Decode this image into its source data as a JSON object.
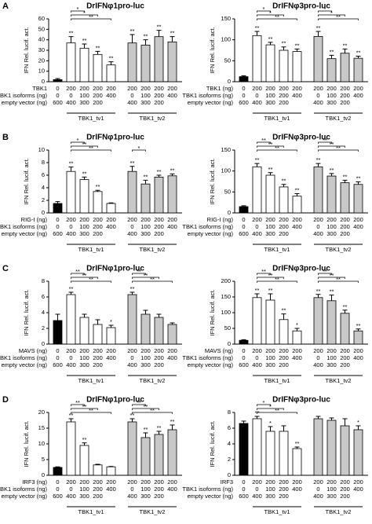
{
  "bar_colors": [
    "#000000",
    "#ffffff",
    "#ffffff",
    "#ffffff",
    "#ffffff",
    "#c8c8c8",
    "#c8c8c8",
    "#c8c8c8",
    "#c8c8c8"
  ],
  "isoform_doses": [
    0,
    0,
    100,
    200,
    400,
    0,
    100,
    200,
    400
  ],
  "empty_doses": [
    600,
    400,
    300,
    200,
    null,
    400,
    300,
    200,
    null
  ],
  "inducer_doses": [
    0,
    200,
    200,
    200,
    200,
    200,
    200,
    200,
    200
  ],
  "row_isoforms": "TBK1 isoforms (ng)",
  "row_empty": "empty vector (ng)",
  "group_left": "TBK1_tv1",
  "group_right": "TBK1_tv2",
  "chart_data": [
    {
      "type": "bar",
      "letter": "A",
      "title": "DrIFNφ1pro-luc",
      "ylabel": "IFN Rel. lucif. act.",
      "inducer": "TBK1",
      "ylim": [
        0,
        60
      ],
      "yticks": [
        0,
        10,
        20,
        30,
        40,
        50,
        60
      ],
      "values": [
        2,
        37,
        32,
        26,
        16,
        37,
        35,
        43,
        38
      ],
      "errors": [
        1,
        6,
        4,
        3,
        3,
        8,
        5,
        6,
        5
      ],
      "stars": [
        null,
        "**",
        "**",
        "**",
        "**",
        "**",
        "**",
        "**",
        "**"
      ],
      "brackets_left": [
        "*",
        "*",
        "**"
      ],
      "brackets_right": []
    },
    {
      "type": "bar",
      "letter": null,
      "title": "DrIFNφ3pro-luc",
      "ylabel": "IFN Rel. lucif. act.",
      "inducer": "TBK1 (ng)",
      "ylim": [
        0,
        150
      ],
      "yticks": [
        0,
        50,
        100,
        150
      ],
      "values": [
        12,
        110,
        88,
        75,
        72,
        108,
        55,
        68,
        56
      ],
      "errors": [
        2,
        10,
        6,
        8,
        6,
        12,
        8,
        10,
        5
      ],
      "stars": [
        null,
        "**",
        "**",
        "**",
        "**",
        "**",
        "**",
        "**",
        "**"
      ],
      "brackets_left": [
        "*",
        "*",
        "**"
      ],
      "brackets_right": [
        "*",
        "*",
        "**"
      ]
    },
    {
      "type": "bar",
      "letter": "B",
      "title": "DrIFNφ1pro-luc",
      "ylabel": "IFN Rel. lucif. act.",
      "inducer": "RIG-I (ng)",
      "ylim": [
        0,
        10
      ],
      "yticks": [
        0,
        2,
        4,
        6,
        8,
        10
      ],
      "values": [
        1.5,
        6.6,
        5.3,
        3.4,
        1.5,
        6.6,
        4.6,
        5.7,
        5.9
      ],
      "errors": [
        0.3,
        0.7,
        0.4,
        0.2,
        0.1,
        0.8,
        0.6,
        0.3,
        0.3
      ],
      "stars": [
        null,
        "**",
        "**",
        "**",
        null,
        "**",
        "**",
        "**",
        "**"
      ],
      "brackets_left": [
        "*",
        "**",
        "**"
      ],
      "brackets_right": [
        "*"
      ]
    },
    {
      "type": "bar",
      "letter": null,
      "title": "DrIFNφ3pro-luc",
      "ylabel": "IFN Rel. lucif. act.",
      "inducer": "RIG-I (ng)",
      "ylim": [
        0,
        150
      ],
      "yticks": [
        0,
        50,
        100,
        150
      ],
      "values": [
        15,
        110,
        90,
        62,
        40,
        110,
        88,
        72,
        68
      ],
      "errors": [
        2,
        8,
        6,
        6,
        6,
        8,
        6,
        6,
        6
      ],
      "stars": [
        null,
        "**",
        "**",
        "**",
        "**",
        "**",
        "**",
        "**",
        "**"
      ],
      "brackets_left": [
        "**",
        "**",
        "**"
      ],
      "brackets_right": [
        "**",
        "**",
        "**"
      ]
    },
    {
      "type": "bar",
      "letter": "C",
      "title": "DrIFNφ1pro-luc",
      "ylabel": "IFN Rel. lucif. act.",
      "inducer": "MAVS (ng)",
      "ylim": [
        0,
        8
      ],
      "yticks": [
        0,
        2,
        4,
        6,
        8
      ],
      "values": [
        3.0,
        6.3,
        3.4,
        2.5,
        2.1,
        6.3,
        3.8,
        3.4,
        2.5
      ],
      "errors": [
        0.8,
        0.3,
        0.4,
        0.6,
        0.3,
        0.3,
        0.5,
        0.4,
        0.2
      ],
      "stars": [
        null,
        "**",
        null,
        null,
        "*",
        "**",
        null,
        null,
        null
      ],
      "brackets_left": [
        "**",
        "**",
        "**"
      ],
      "brackets_right": [
        "**",
        "**",
        "**"
      ]
    },
    {
      "type": "bar",
      "letter": null,
      "title": "DrIFNφ3pro-luc",
      "ylabel": "IFN Rel. lucif. act.",
      "inducer": "MAVS (ng)",
      "ylim": [
        0,
        200
      ],
      "yticks": [
        0,
        50,
        100,
        150,
        200
      ],
      "values": [
        12,
        148,
        140,
        78,
        42,
        148,
        138,
        98,
        42
      ],
      "errors": [
        2,
        12,
        20,
        18,
        8,
        10,
        18,
        10,
        6
      ],
      "stars": [
        null,
        "**",
        "**",
        "**",
        "*",
        "**",
        "**",
        "**",
        "**"
      ],
      "brackets_left": [
        "**",
        "**",
        "**"
      ],
      "brackets_right": [
        "**",
        "**",
        "**"
      ]
    },
    {
      "type": "bar",
      "letter": "D",
      "title": "DrIFNφ1pro-luc",
      "ylabel": "IFN Rel. lucif. act.",
      "inducer": "IRF3 (ng)",
      "ylim": [
        0,
        20
      ],
      "yticks": [
        0,
        5,
        10,
        15,
        20
      ],
      "values": [
        2.5,
        17,
        9.5,
        3.3,
        2.7,
        17,
        12,
        13,
        14.5
      ],
      "errors": [
        0.2,
        1,
        0.8,
        0.2,
        0.1,
        1,
        1.5,
        1,
        1.5
      ],
      "stars": [
        null,
        "**",
        "**",
        null,
        null,
        "**",
        "**",
        "**",
        "**"
      ],
      "brackets_left": [
        "**",
        "**",
        "**"
      ],
      "brackets_right": [
        "**",
        "**",
        "**"
      ]
    },
    {
      "type": "bar",
      "letter": null,
      "title": "DrIFNφ3pro-luc",
      "ylabel": "IFN Rel. lucif. act.",
      "inducer": "IRF3",
      "ylim": [
        0,
        8
      ],
      "yticks": [
        0,
        2,
        4,
        6,
        8
      ],
      "values": [
        6.6,
        7.2,
        5.6,
        5.6,
        3.4,
        7.2,
        7.0,
        6.3,
        5.8
      ],
      "errors": [
        0.3,
        0.3,
        0.6,
        0.7,
        0.2,
        0.3,
        0.3,
        0.9,
        0.5
      ],
      "stars": [
        null,
        "**",
        "*",
        null,
        "**",
        null,
        null,
        null,
        "*"
      ],
      "brackets_left": [
        "*",
        "*",
        "**"
      ],
      "brackets_right": []
    }
  ]
}
